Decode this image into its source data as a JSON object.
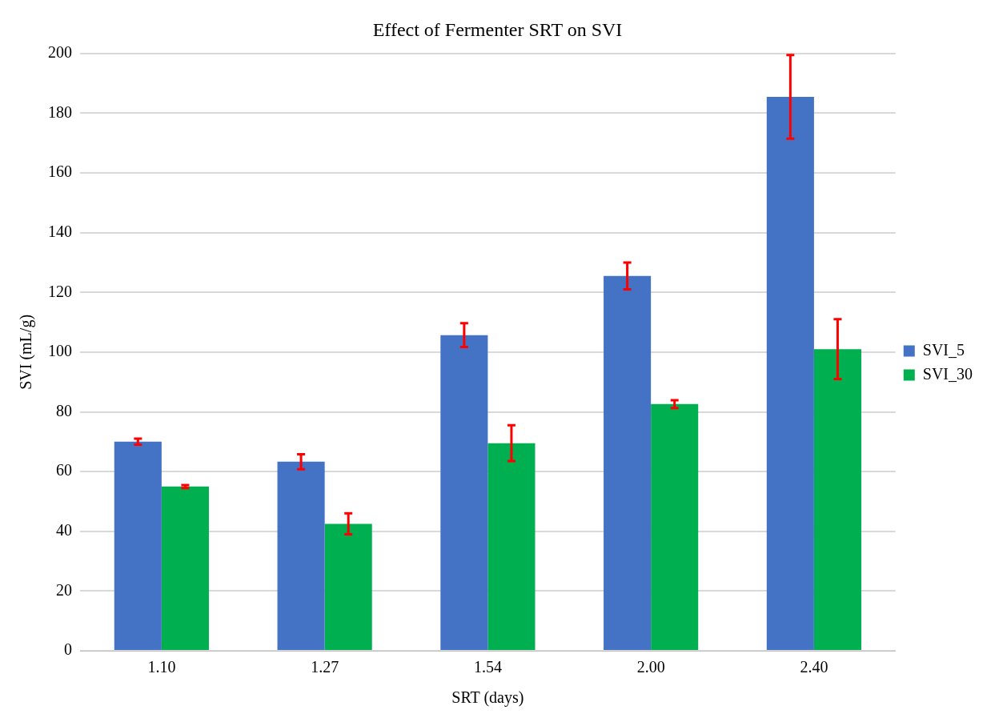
{
  "chart_data": {
    "type": "bar",
    "title": "Effect of Fermenter SRT on SVI",
    "xlabel": "SRT (days)",
    "ylabel": "SVI (mL/g)",
    "categories": [
      "1.10",
      "1.27",
      "1.54",
      "2.00",
      "2.40"
    ],
    "series": [
      {
        "name": "SVI_5",
        "color": "#4472c4",
        "values": [
          70,
          63.3,
          105.7,
          125.5,
          185.5
        ],
        "errors": [
          1,
          2.5,
          4,
          4.5,
          14
        ]
      },
      {
        "name": "SVI_30",
        "color": "#00b050",
        "values": [
          55,
          42.5,
          69.5,
          82.6,
          101
        ],
        "errors": [
          0.5,
          3.5,
          6,
          1.3,
          10
        ]
      }
    ],
    "ylim": [
      0,
      200
    ],
    "yticks": [
      0,
      20,
      40,
      60,
      80,
      100,
      120,
      140,
      160,
      180,
      200
    ],
    "grid": "y",
    "legend": "right"
  }
}
